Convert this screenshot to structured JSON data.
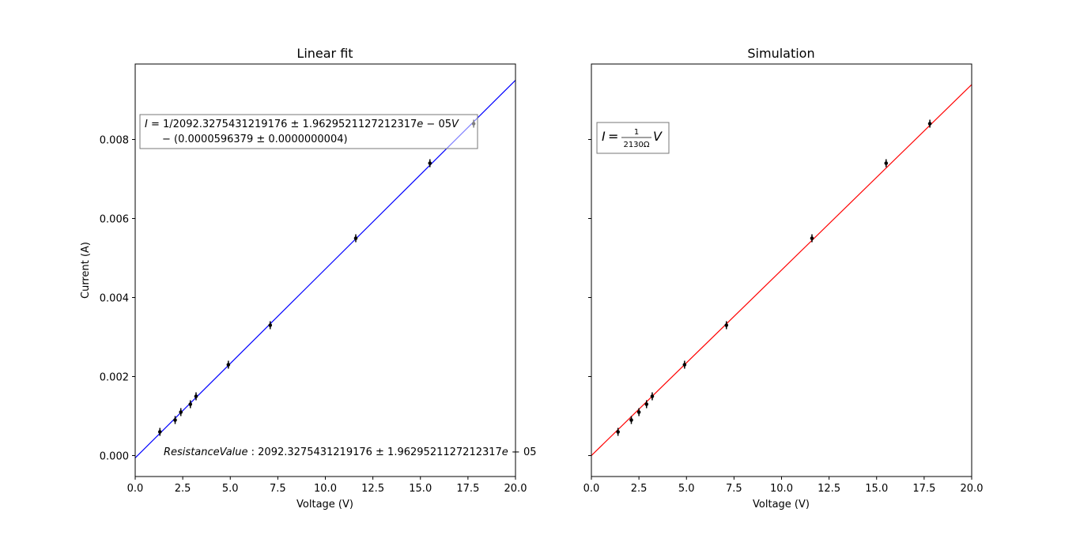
{
  "figure": {
    "ylabel": "Current (A)"
  },
  "chart_data": [
    {
      "type": "scatter",
      "title": "Linear fit",
      "xlabel": "Voltage (V)",
      "ylabel": "Current (A)",
      "xlim": [
        0,
        20
      ],
      "ylim": [
        -0.00053,
        0.00991
      ],
      "xticks": [
        "0.0",
        "2.5",
        "5.0",
        "7.5",
        "10.0",
        "12.5",
        "15.0",
        "17.5",
        "20.0"
      ],
      "yticks": [
        "0.000",
        "0.002",
        "0.004",
        "0.006",
        "0.008"
      ],
      "grid": false,
      "series": [
        {
          "kind": "errorbar",
          "color": "#000000",
          "x": [
            1.3,
            2.1,
            2.4,
            2.9,
            3.2,
            4.9,
            7.1,
            11.6,
            15.5,
            17.8
          ],
          "y": [
            0.0006,
            0.0009,
            0.0011,
            0.0013,
            0.0015,
            0.0023,
            0.0033,
            0.0055,
            0.0074,
            0.0084
          ],
          "yerr": [
            0.0001,
            0.0001,
            0.0001,
            0.0001,
            0.0001,
            0.0001,
            0.0001,
            0.0001,
            0.0001,
            0.0001
          ]
        },
        {
          "kind": "line",
          "color": "#0000ff",
          "x": [
            0,
            20
          ],
          "y": [
            -5.96e-05,
            0.0095
          ]
        }
      ],
      "annotations": {
        "equation": {
          "line1_prefix": "I",
          "line1_text": " = 1/2092.3275431219176 ± 1.9629521127212317",
          "line1_e": "e",
          "line1_mid": " − 05",
          "line1_v": "V",
          "line2": "− (0.0000596379 ± 0.0000000004)"
        },
        "resistance": {
          "label": "ResistanceValue",
          "value": " : 2092.3275431219176 ± 1.9629521127212317",
          "e": "e",
          "suffix": " − 05"
        }
      }
    },
    {
      "type": "scatter",
      "title": "Simulation",
      "xlabel": "Voltage (V)",
      "xlim": [
        0,
        20
      ],
      "ylim": [
        -0.00053,
        0.00991
      ],
      "xticks": [
        "0.0",
        "2.5",
        "5.0",
        "7.5",
        "10.0",
        "12.5",
        "15.0",
        "17.5",
        "20.0"
      ],
      "grid": false,
      "series": [
        {
          "kind": "errorbar",
          "color": "#000000",
          "x": [
            1.4,
            2.1,
            2.5,
            2.9,
            3.2,
            4.9,
            7.1,
            11.6,
            15.5,
            17.8
          ],
          "y": [
            0.0006,
            0.0009,
            0.0011,
            0.0013,
            0.0015,
            0.0023,
            0.0033,
            0.0055,
            0.0074,
            0.0084
          ],
          "yerr": [
            0.0001,
            0.0001,
            0.0001,
            0.0001,
            0.0001,
            0.0001,
            0.0001,
            0.0001,
            0.0001,
            0.0001
          ]
        },
        {
          "kind": "line",
          "color": "#ff0000",
          "x": [
            0,
            20
          ],
          "y": [
            0,
            0.00939
          ]
        }
      ],
      "annotations": {
        "equation": {
          "lhs": "I",
          "eq": " = ",
          "num": "1",
          "den": "2130Ω",
          "var": "V"
        }
      }
    }
  ]
}
